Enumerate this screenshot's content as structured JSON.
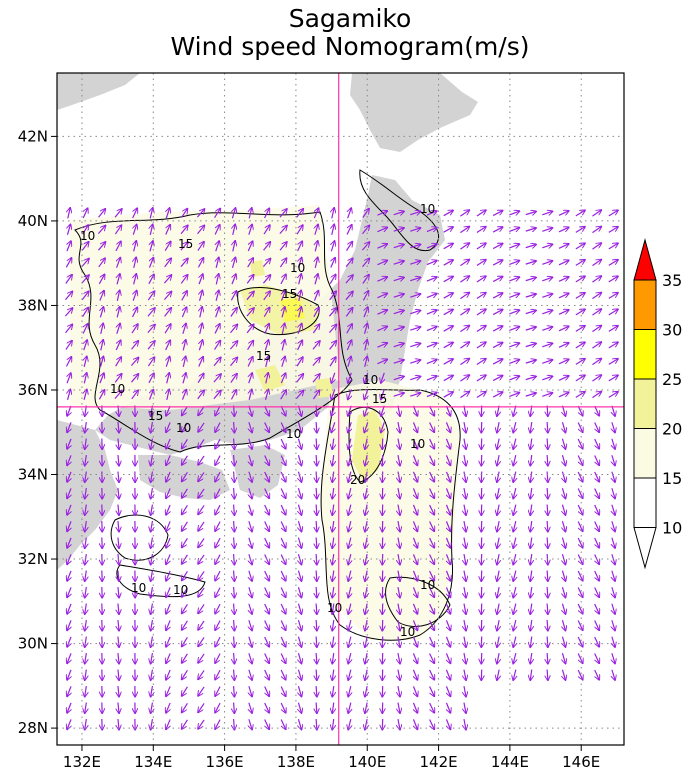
{
  "title": {
    "line1": "Sagamiko",
    "line2": "Wind speed Nomogram(m/s)"
  },
  "map": {
    "lon_range": [
      131.3,
      147.2
    ],
    "lat_range": [
      27.6,
      43.5
    ],
    "lon_ticks": [
      "132E",
      "134E",
      "136E",
      "138E",
      "140E",
      "142E",
      "144E",
      "146E"
    ],
    "lat_ticks": [
      "28N",
      "30N",
      "32N",
      "34N",
      "36N",
      "38N",
      "40N",
      "42N"
    ],
    "crosshair": {
      "lon": 139.2,
      "lat": 35.6,
      "color": "#ff33aa"
    },
    "land_color": "#d3d3d3",
    "arrow_color": "#9a20e0",
    "grid": "dotted"
  },
  "contour_labels": [
    "10",
    "15",
    "20"
  ],
  "colorbar": {
    "levels": [
      "10",
      "15",
      "20",
      "25",
      "30",
      "35"
    ],
    "colors": [
      "#ffffff",
      "#fbfbe4",
      "#f2f29a",
      "#ffff00",
      "#ff9900",
      "#ff0000"
    ]
  }
}
